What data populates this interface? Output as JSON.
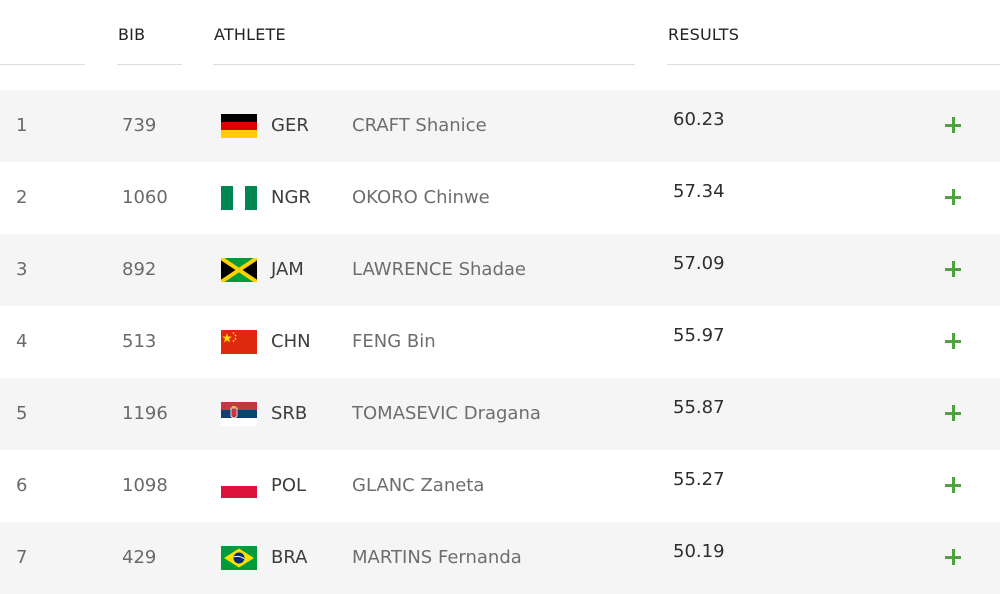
{
  "table": {
    "headers": {
      "bib": "BIB",
      "athlete": "ATHLETE",
      "results": "RESULTS"
    },
    "rows": [
      {
        "rank": "1",
        "bib": "739",
        "country": "GER",
        "name": "CRAFT Shanice",
        "result": "60.23",
        "flag": "germany-flag-icon"
      },
      {
        "rank": "2",
        "bib": "1060",
        "country": "NGR",
        "name": "OKORO Chinwe",
        "result": "57.34",
        "flag": "nigeria-flag-icon"
      },
      {
        "rank": "3",
        "bib": "892",
        "country": "JAM",
        "name": "LAWRENCE Shadae",
        "result": "57.09",
        "flag": "jamaica-flag-icon"
      },
      {
        "rank": "4",
        "bib": "513",
        "country": "CHN",
        "name": "FENG Bin",
        "result": "55.97",
        "flag": "china-flag-icon"
      },
      {
        "rank": "5",
        "bib": "1196",
        "country": "SRB",
        "name": "TOMASEVIC Dragana",
        "result": "55.87",
        "flag": "serbia-flag-icon"
      },
      {
        "rank": "6",
        "bib": "1098",
        "country": "POL",
        "name": "GLANC Zaneta",
        "result": "55.27",
        "flag": "poland-flag-icon"
      },
      {
        "rank": "7",
        "bib": "429",
        "country": "BRA",
        "name": "MARTINS Fernanda",
        "result": "50.19",
        "flag": "brazil-flag-icon"
      }
    ]
  },
  "colors": {
    "expand_icon": "#4ea33e",
    "row_alt_bg": "#f5f5f5",
    "header_rule": "#dedede"
  }
}
